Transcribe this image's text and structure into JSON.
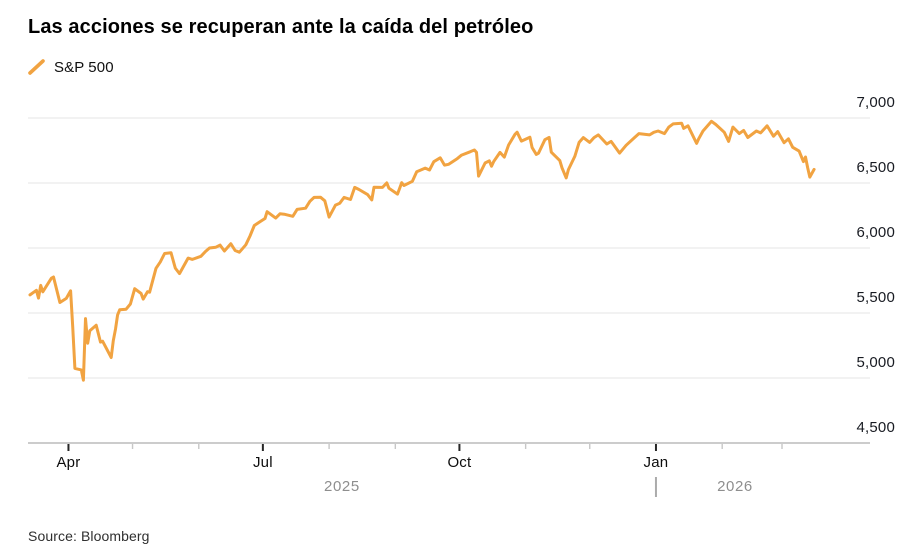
{
  "title": "Las acciones se recuperan ante la caída del petróleo",
  "legend": {
    "label": "S&P 500"
  },
  "source": "Source: Bloomberg",
  "colors": {
    "line": "#F1A341",
    "grid": "#E4E4E4",
    "axis": "#999999",
    "tick_major": "#262626",
    "tick_minor": "#C7C7C7",
    "year_divider": "#ABABAB"
  },
  "chart_data": {
    "type": "line",
    "title": "Las acciones se recuperan ante la caída del petróleo",
    "ylabel": "",
    "xlabel": "",
    "ylim": [
      4500,
      7000
    ],
    "grid": "horizontal",
    "legend_position": "top-left",
    "y_ticks": [
      {
        "value": 7000,
        "label": "7,000"
      },
      {
        "value": 6500,
        "label": "6,500"
      },
      {
        "value": 6000,
        "label": "6,000"
      },
      {
        "value": 5500,
        "label": "5,500"
      },
      {
        "value": 5000,
        "label": "5,000"
      },
      {
        "value": 4500,
        "label": "4,500"
      }
    ],
    "x_ticks": [
      {
        "day": 18,
        "label": "Apr",
        "major": true
      },
      {
        "day": 48,
        "label": "",
        "major": false
      },
      {
        "day": 79,
        "label": "",
        "major": false
      },
      {
        "day": 109,
        "label": "Jul",
        "major": true
      },
      {
        "day": 140,
        "label": "",
        "major": false
      },
      {
        "day": 171,
        "label": "",
        "major": false
      },
      {
        "day": 201,
        "label": "Oct",
        "major": true
      },
      {
        "day": 232,
        "label": "",
        "major": false
      },
      {
        "day": 262,
        "label": "",
        "major": false
      },
      {
        "day": 293,
        "label": "Jan",
        "major": true
      },
      {
        "day": 324,
        "label": "",
        "major": false
      },
      {
        "day": 352,
        "label": "",
        "major": false
      }
    ],
    "years": [
      {
        "label": "2025",
        "from_day": 0,
        "to_day": 292
      },
      {
        "label": "2026",
        "from_day": 293,
        "to_day": 367
      }
    ],
    "year_divider_day": 293,
    "series": [
      {
        "name": "S&P 500",
        "color": "#F1A341",
        "points": [
          [
            0,
            5639
          ],
          [
            3,
            5675
          ],
          [
            4,
            5615
          ],
          [
            5,
            5712
          ],
          [
            6,
            5663
          ],
          [
            10,
            5768
          ],
          [
            11,
            5777
          ],
          [
            12,
            5712
          ],
          [
            14,
            5581
          ],
          [
            17,
            5612
          ],
          [
            19,
            5671
          ],
          [
            20,
            5396
          ],
          [
            21,
            5074
          ],
          [
            24,
            5062
          ],
          [
            25,
            4983
          ],
          [
            26,
            5457
          ],
          [
            27,
            5268
          ],
          [
            28,
            5363
          ],
          [
            31,
            5406
          ],
          [
            33,
            5276
          ],
          [
            34,
            5283
          ],
          [
            38,
            5158
          ],
          [
            39,
            5288
          ],
          [
            40,
            5376
          ],
          [
            41,
            5485
          ],
          [
            42,
            5525
          ],
          [
            45,
            5529
          ],
          [
            47,
            5569
          ],
          [
            49,
            5687
          ],
          [
            52,
            5650
          ],
          [
            53,
            5607
          ],
          [
            55,
            5664
          ],
          [
            56,
            5660
          ],
          [
            59,
            5844
          ],
          [
            61,
            5893
          ],
          [
            63,
            5958
          ],
          [
            66,
            5964
          ],
          [
            68,
            5845
          ],
          [
            70,
            5803
          ],
          [
            74,
            5922
          ],
          [
            76,
            5912
          ],
          [
            80,
            5936
          ],
          [
            82,
            5971
          ],
          [
            84,
            6000
          ],
          [
            87,
            6006
          ],
          [
            89,
            6022
          ],
          [
            91,
            5977
          ],
          [
            94,
            6033
          ],
          [
            96,
            5981
          ],
          [
            98,
            5968
          ],
          [
            101,
            6025
          ],
          [
            103,
            6092
          ],
          [
            105,
            6173
          ],
          [
            108,
            6205
          ],
          [
            110,
            6227
          ],
          [
            111,
            6279
          ],
          [
            115,
            6230
          ],
          [
            117,
            6263
          ],
          [
            119,
            6260
          ],
          [
            123,
            6244
          ],
          [
            125,
            6297
          ],
          [
            129,
            6306
          ],
          [
            131,
            6359
          ],
          [
            133,
            6389
          ],
          [
            136,
            6390
          ],
          [
            138,
            6363
          ],
          [
            140,
            6238
          ],
          [
            143,
            6330
          ],
          [
            145,
            6345
          ],
          [
            147,
            6389
          ],
          [
            150,
            6373
          ],
          [
            152,
            6466
          ],
          [
            154,
            6450
          ],
          [
            158,
            6411
          ],
          [
            160,
            6370
          ],
          [
            161,
            6467
          ],
          [
            165,
            6466
          ],
          [
            167,
            6501
          ],
          [
            168,
            6460
          ],
          [
            172,
            6415
          ],
          [
            174,
            6502
          ],
          [
            175,
            6481
          ],
          [
            179,
            6513
          ],
          [
            181,
            6587
          ],
          [
            185,
            6615
          ],
          [
            187,
            6600
          ],
          [
            189,
            6664
          ],
          [
            192,
            6694
          ],
          [
            194,
            6638
          ],
          [
            196,
            6644
          ],
          [
            200,
            6688
          ],
          [
            202,
            6715
          ],
          [
            206,
            6740
          ],
          [
            208,
            6754
          ],
          [
            209,
            6735
          ],
          [
            210,
            6553
          ],
          [
            213,
            6654
          ],
          [
            215,
            6671
          ],
          [
            216,
            6629
          ],
          [
            217,
            6664
          ],
          [
            220,
            6735
          ],
          [
            222,
            6699
          ],
          [
            224,
            6792
          ],
          [
            227,
            6875
          ],
          [
            228,
            6891
          ],
          [
            230,
            6822
          ],
          [
            234,
            6852
          ],
          [
            235,
            6772
          ],
          [
            237,
            6720
          ],
          [
            238,
            6729
          ],
          [
            241,
            6833
          ],
          [
            243,
            6851
          ],
          [
            244,
            6737
          ],
          [
            248,
            6672
          ],
          [
            249,
            6617
          ],
          [
            251,
            6539
          ],
          [
            252,
            6603
          ],
          [
            255,
            6705
          ],
          [
            257,
            6812
          ],
          [
            259,
            6849
          ],
          [
            262,
            6812
          ],
          [
            264,
            6849
          ],
          [
            266,
            6870
          ],
          [
            270,
            6800
          ],
          [
            272,
            6820
          ],
          [
            276,
            6730
          ],
          [
            279,
            6790
          ],
          [
            283,
            6850
          ],
          [
            285,
            6880
          ],
          [
            290,
            6870
          ],
          [
            292,
            6890
          ],
          [
            294,
            6900
          ],
          [
            297,
            6880
          ],
          [
            299,
            6930
          ],
          [
            301,
            6955
          ],
          [
            305,
            6960
          ],
          [
            306,
            6920
          ],
          [
            308,
            6940
          ],
          [
            312,
            6805
          ],
          [
            313,
            6840
          ],
          [
            315,
            6900
          ],
          [
            319,
            6975
          ],
          [
            321,
            6950
          ],
          [
            325,
            6890
          ],
          [
            327,
            6820
          ],
          [
            329,
            6930
          ],
          [
            332,
            6880
          ],
          [
            334,
            6905
          ],
          [
            336,
            6850
          ],
          [
            340,
            6900
          ],
          [
            342,
            6885
          ],
          [
            345,
            6940
          ],
          [
            348,
            6860
          ],
          [
            350,
            6895
          ],
          [
            353,
            6810
          ],
          [
            355,
            6840
          ],
          [
            357,
            6775
          ],
          [
            360,
            6745
          ],
          [
            362,
            6665
          ],
          [
            363,
            6700
          ],
          [
            364,
            6620
          ],
          [
            365,
            6545
          ],
          [
            367,
            6605
          ]
        ]
      }
    ]
  }
}
